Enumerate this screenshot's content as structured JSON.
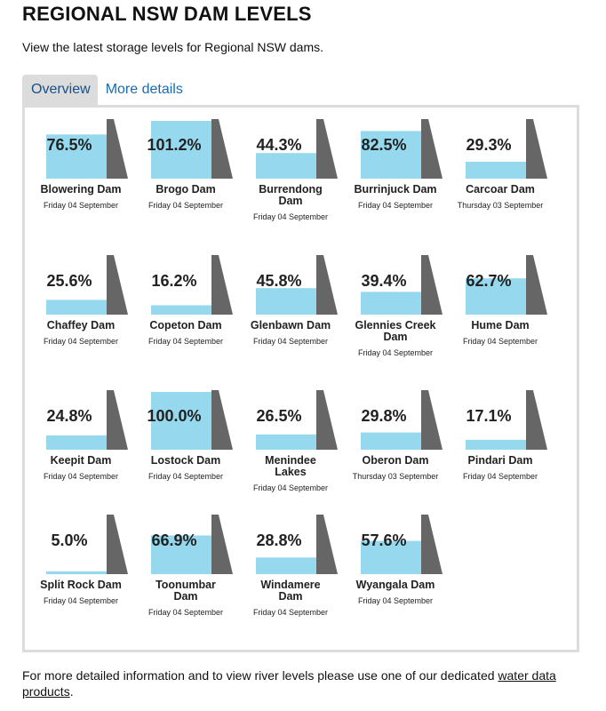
{
  "page": {
    "title": "REGIONAL NSW DAM LEVELS",
    "intro": "View the latest storage levels for Regional NSW dams."
  },
  "tabs": [
    {
      "label": "Overview",
      "active": true
    },
    {
      "label": "More details",
      "active": false
    }
  ],
  "colors": {
    "water": "#96d9ee",
    "wall": "#666666",
    "tab_active_bg": "#dcdcdc",
    "link": "#1a6bb0"
  },
  "dams": [
    {
      "name": "Blowering Dam",
      "percent": 76.5,
      "label": "76.5%",
      "date": "Friday 04 September"
    },
    {
      "name": "Brogo Dam",
      "percent": 101.2,
      "label": "101.2%",
      "date": "Friday 04 September"
    },
    {
      "name": "Burrendong Dam",
      "percent": 44.3,
      "label": "44.3%",
      "date": "Friday 04 September"
    },
    {
      "name": "Burrinjuck Dam",
      "percent": 82.5,
      "label": "82.5%",
      "date": "Friday 04 September"
    },
    {
      "name": "Carcoar Dam",
      "percent": 29.3,
      "label": "29.3%",
      "date": "Thursday 03 September"
    },
    {
      "name": "Chaffey Dam",
      "percent": 25.6,
      "label": "25.6%",
      "date": "Friday 04 September"
    },
    {
      "name": "Copeton Dam",
      "percent": 16.2,
      "label": "16.2%",
      "date": "Friday 04 September"
    },
    {
      "name": "Glenbawn Dam",
      "percent": 45.8,
      "label": "45.8%",
      "date": "Friday 04 September"
    },
    {
      "name": "Glennies Creek Dam",
      "percent": 39.4,
      "label": "39.4%",
      "date": "Friday 04 September"
    },
    {
      "name": "Hume Dam",
      "percent": 62.7,
      "label": "62.7%",
      "date": "Friday 04 September"
    },
    {
      "name": "Keepit Dam",
      "percent": 24.8,
      "label": "24.8%",
      "date": "Friday 04 September"
    },
    {
      "name": "Lostock Dam",
      "percent": 100.0,
      "label": "100.0%",
      "date": "Friday 04 September"
    },
    {
      "name": "Menindee Lakes",
      "percent": 26.5,
      "label": "26.5%",
      "date": "Friday 04 September"
    },
    {
      "name": "Oberon Dam",
      "percent": 29.8,
      "label": "29.8%",
      "date": "Thursday 03 September"
    },
    {
      "name": "Pindari Dam",
      "percent": 17.1,
      "label": "17.1%",
      "date": "Friday 04 September"
    },
    {
      "name": "Split Rock Dam",
      "percent": 5.0,
      "label": "5.0%",
      "date": "Friday 04 September"
    },
    {
      "name": "Toonumbar Dam",
      "percent": 66.9,
      "label": "66.9%",
      "date": "Friday 04 September"
    },
    {
      "name": "Windamere Dam",
      "percent": 28.8,
      "label": "28.8%",
      "date": "Friday 04 September"
    },
    {
      "name": "Wyangala Dam",
      "percent": 57.6,
      "label": "57.6%",
      "date": "Friday 04 September"
    }
  ],
  "footer": {
    "text": "For more detailed information and to view river levels please use one of our dedicated ",
    "link_text": "water data products",
    "end": "."
  }
}
